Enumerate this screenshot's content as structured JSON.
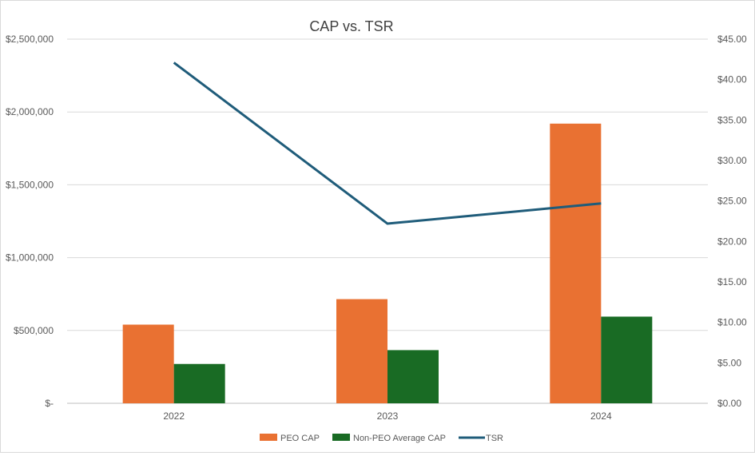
{
  "chart_data": {
    "type": "bar",
    "title": "CAP vs. TSR",
    "categories": [
      "2022",
      "2023",
      "2024"
    ],
    "series": [
      {
        "name": "PEO CAP",
        "kind": "bar",
        "axis": "left",
        "color": "#e97132",
        "values": [
          540000,
          715000,
          1920000
        ]
      },
      {
        "name": "Non-PEO Average CAP",
        "kind": "bar",
        "axis": "left",
        "color": "#196b24",
        "values": [
          270000,
          365000,
          595000
        ]
      },
      {
        "name": "TSR",
        "kind": "line",
        "axis": "right",
        "color": "#1f5c7a",
        "values": [
          42.1,
          22.2,
          24.7
        ]
      }
    ],
    "y_left": {
      "min": 0,
      "max": 2500000,
      "ticks": [
        0,
        500000,
        1000000,
        1500000,
        2000000,
        2500000
      ],
      "tick_labels": [
        "$-",
        "$500,000",
        "$1,000,000",
        "$1,500,000",
        "$2,000,000",
        "$2,500,000"
      ]
    },
    "y_right": {
      "min": 0,
      "max": 45,
      "ticks": [
        0,
        5,
        10,
        15,
        20,
        25,
        30,
        35,
        40,
        45
      ],
      "tick_labels": [
        "$0.00",
        "$5.00",
        "$10.00",
        "$15.00",
        "$20.00",
        "$25.00",
        "$30.00",
        "$35.00",
        "$40.00",
        "$45.00"
      ]
    },
    "grid": true,
    "legend_position": "bottom"
  }
}
